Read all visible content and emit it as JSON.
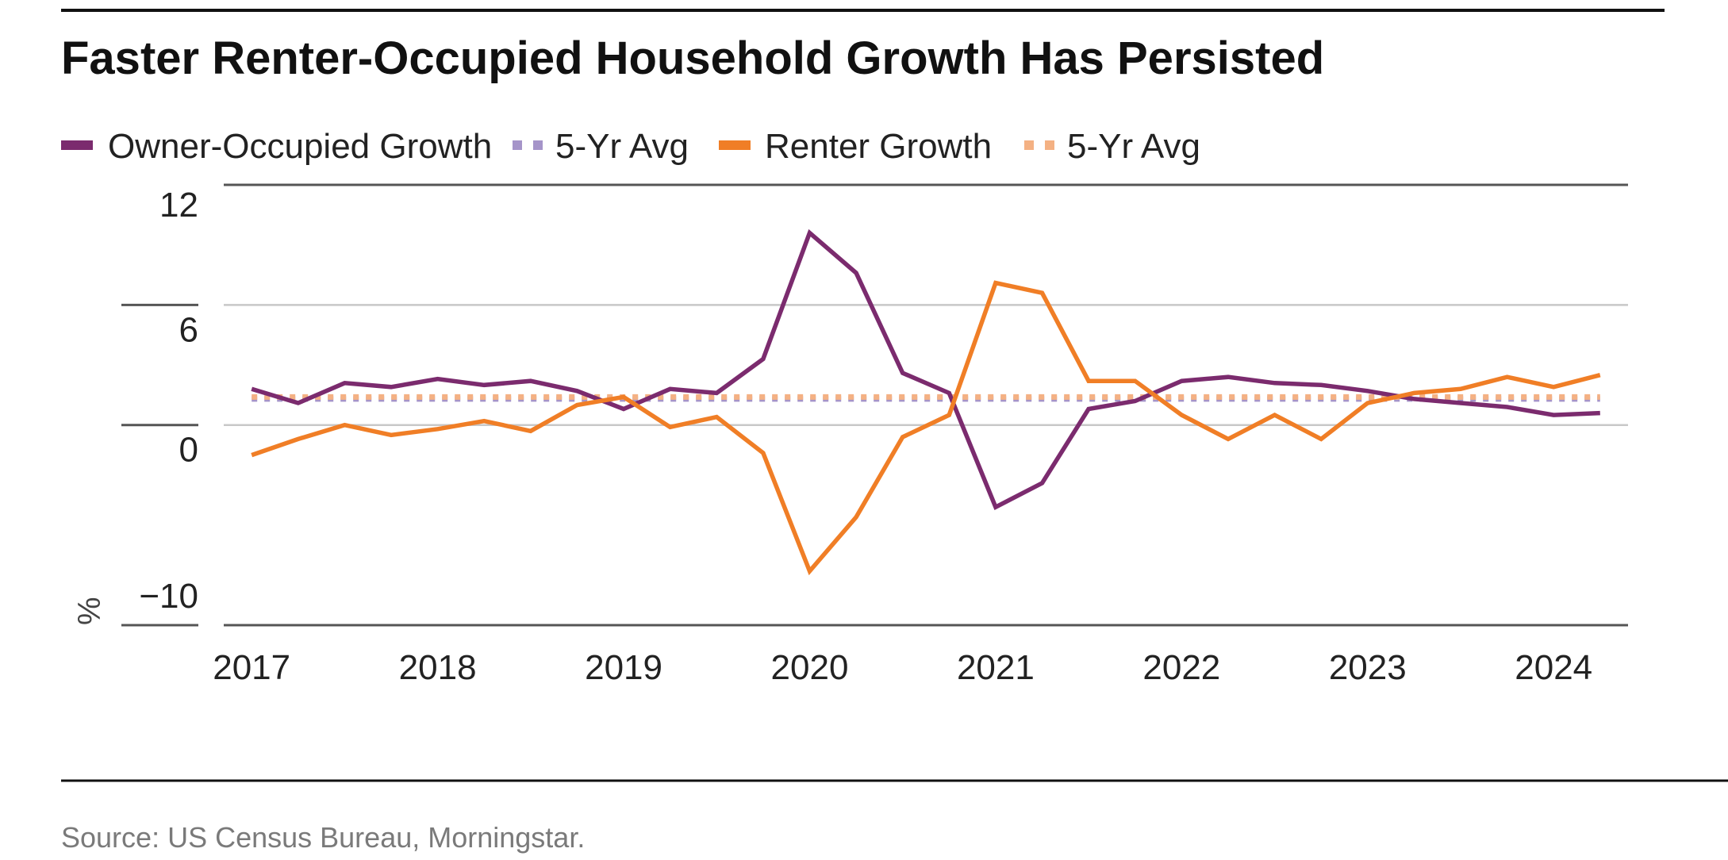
{
  "chart_data": {
    "type": "line",
    "title": "Faster Renter-Occupied Household Growth Has Persisted",
    "ylabel": "%",
    "xlabel": "",
    "ylim": [
      -10,
      12
    ],
    "yticks": [
      12,
      6,
      0,
      -10
    ],
    "x": [
      2017.0,
      2017.25,
      2017.5,
      2017.75,
      2018.0,
      2018.25,
      2018.5,
      2018.75,
      2019.0,
      2019.25,
      2019.5,
      2019.75,
      2020.0,
      2020.25,
      2020.5,
      2020.75,
      2021.0,
      2021.25,
      2021.5,
      2021.75,
      2022.0,
      2022.25,
      2022.5,
      2022.75,
      2023.0,
      2023.25,
      2023.5,
      2023.75,
      2024.0,
      2024.25
    ],
    "xlim": [
      2016.85,
      2024.4
    ],
    "xticks": [
      "2017",
      "2018",
      "2019",
      "2020",
      "2021",
      "2022",
      "2023",
      "2024"
    ],
    "series": [
      {
        "name": "Owner-Occupied Growth",
        "color": "#7b2b6e",
        "style": "solid",
        "values": [
          1.8,
          1.1,
          2.1,
          1.9,
          2.3,
          2.0,
          2.2,
          1.7,
          0.8,
          1.8,
          1.6,
          3.3,
          9.6,
          7.6,
          2.6,
          1.6,
          -4.1,
          -2.9,
          0.8,
          1.2,
          2.2,
          2.4,
          2.1,
          2.0,
          1.7,
          1.3,
          1.1,
          0.9,
          0.5,
          0.6
        ]
      },
      {
        "name": "5-Yr Avg",
        "color": "#a594c9",
        "style": "dotted",
        "values": [
          1.3,
          1.3,
          1.3,
          1.3,
          1.3,
          1.3,
          1.3,
          1.3,
          1.3,
          1.3,
          1.3,
          1.3,
          1.3,
          1.3,
          1.3,
          1.3,
          1.3,
          1.3,
          1.3,
          1.3,
          1.3,
          1.3,
          1.3,
          1.3,
          1.3,
          1.3,
          1.3,
          1.3,
          1.3,
          1.3
        ]
      },
      {
        "name": "Renter Growth",
        "color": "#f07e26",
        "style": "solid",
        "values": [
          -1.5,
          -0.7,
          0.0,
          -0.5,
          -0.2,
          0.2,
          -0.3,
          1.0,
          1.4,
          -0.1,
          0.4,
          -1.4,
          -7.3,
          -4.6,
          -0.6,
          0.5,
          7.1,
          6.6,
          2.2,
          2.2,
          0.5,
          -0.7,
          0.5,
          -0.7,
          1.1,
          1.6,
          1.8,
          2.4,
          1.9,
          2.5
        ]
      },
      {
        "name": "5-Yr Avg",
        "color": "#f4b183",
        "style": "dotted",
        "values": [
          1.4,
          1.4,
          1.4,
          1.4,
          1.4,
          1.4,
          1.4,
          1.4,
          1.4,
          1.4,
          1.4,
          1.4,
          1.4,
          1.4,
          1.4,
          1.4,
          1.4,
          1.4,
          1.4,
          1.4,
          1.4,
          1.4,
          1.4,
          1.4,
          1.4,
          1.4,
          1.4,
          1.4,
          1.4,
          1.4
        ]
      }
    ]
  },
  "source": "Source: US Census Bureau, Morningstar."
}
